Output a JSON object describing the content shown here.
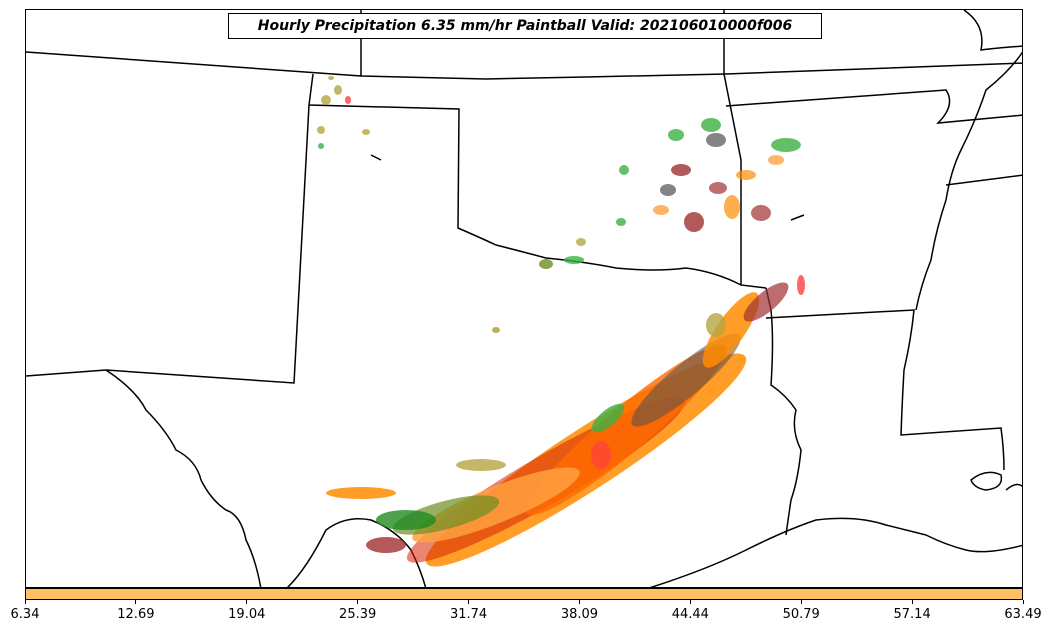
{
  "title": "Hourly Precipitation 6.35 mm/hr Paintball Valid: 202106010000f006",
  "colorbar": {
    "color": "#ffc064",
    "ticks": [
      "6.34",
      "12.69",
      "19.04",
      "25.39",
      "31.74",
      "38.09",
      "44.44",
      "50.79",
      "57.14",
      "63.49"
    ]
  },
  "colors": {
    "boundary": "#000000",
    "member_colors": [
      "#ff8c00",
      "#ff6a00",
      "#d62000",
      "#ff4040",
      "#a03030",
      "#505050",
      "#3cb043",
      "#228b22",
      "#6b8e23",
      "#b5a642",
      "#ffa040"
    ]
  }
}
